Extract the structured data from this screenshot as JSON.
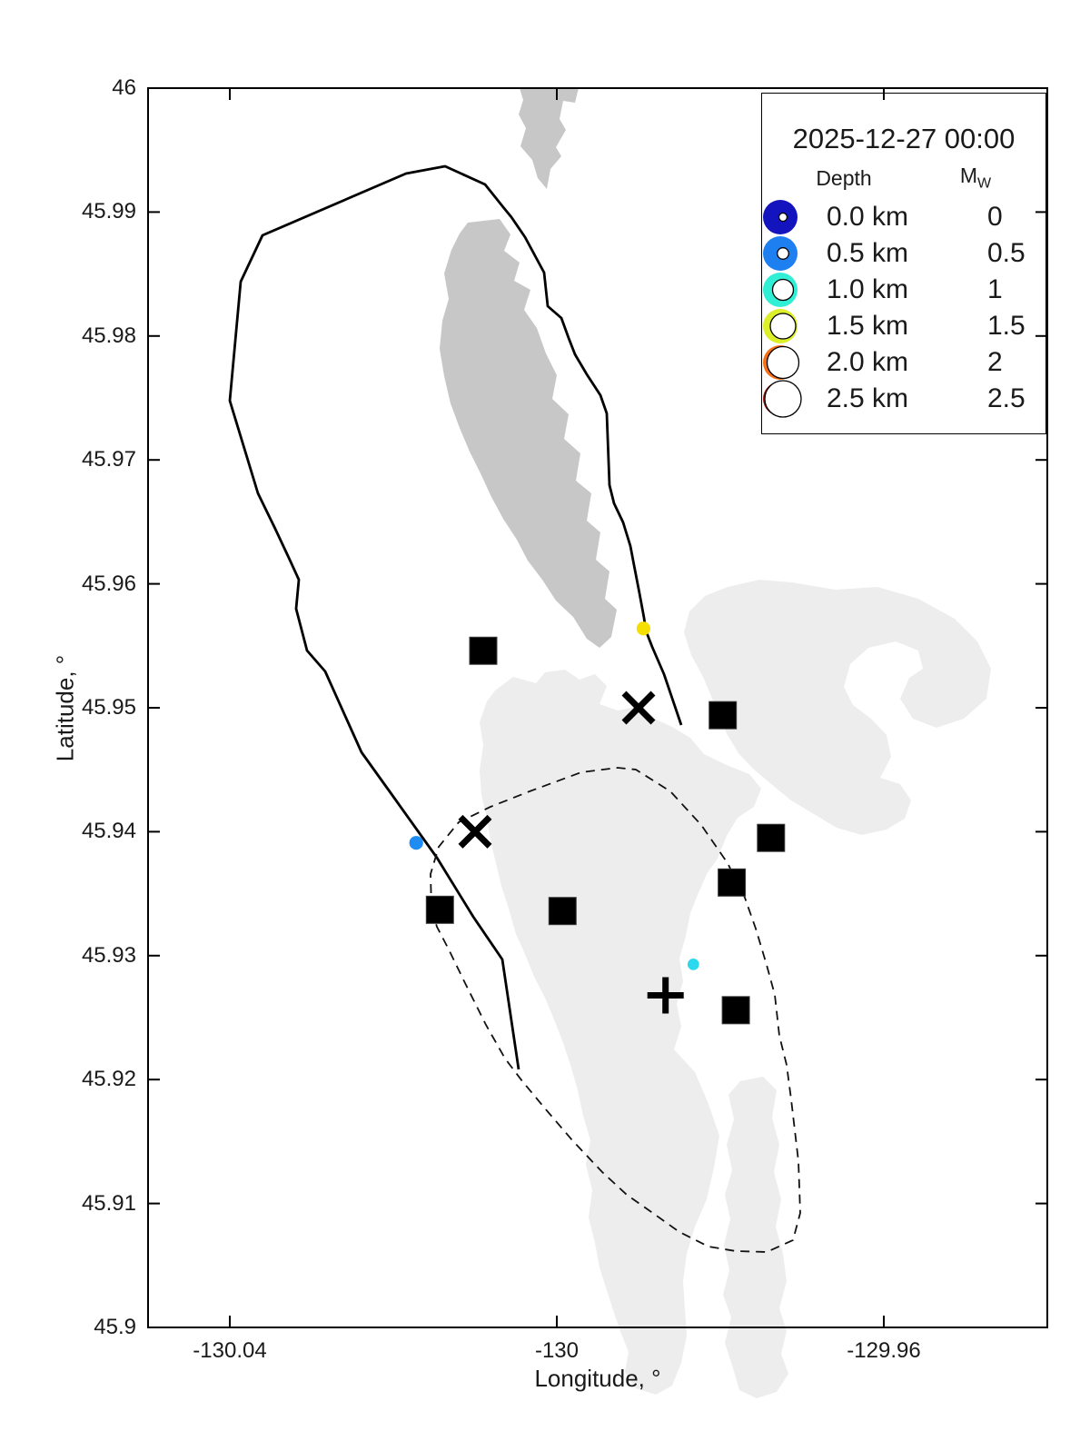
{
  "axes": {
    "xlabel": "Longitude, °",
    "ylabel": "Latitude, °",
    "tick_color": "#1a1a1a"
  },
  "legend": {
    "title": "2025-12-27 00:00",
    "depth_header": "Depth",
    "mw_title": "M",
    "mw_sub": "W",
    "depth": [
      {
        "label": "0.0 km",
        "color": "#1414BE"
      },
      {
        "label": "0.5 km",
        "color": "#1E80F0"
      },
      {
        "label": "1.0 km",
        "color": "#30EFD4"
      },
      {
        "label": "1.5 km",
        "color": "#DCEF28"
      },
      {
        "label": "2.0 km",
        "color": "#F97012"
      },
      {
        "label": "2.5 km",
        "color": "#A31111"
      }
    ],
    "mw": [
      {
        "label": "0",
        "r": 4.5
      },
      {
        "label": "0.5",
        "r": 6.3
      },
      {
        "label": "1",
        "r": 11.5
      },
      {
        "label": "1.5",
        "r": 14
      },
      {
        "label": "2",
        "r": 17.5
      },
      {
        "label": "2.5",
        "r": 20
      }
    ]
  },
  "map": {
    "colors": {
      "flow_dark": "#C7C7C7",
      "flow_light": "#EDEDED",
      "outline": "#000000",
      "background": "#FFFFFF"
    }
  },
  "chart_data": {
    "type": "scatter",
    "title": "2025-12-27 00:00",
    "xlabel": "Longitude, °",
    "ylabel": "Latitude, °",
    "xlim": [
      -130.05,
      -129.94
    ],
    "ylim": [
      45.9,
      46.0
    ],
    "x_ticks": [
      -130.04,
      -130.0,
      -129.96
    ],
    "x_tick_labels": [
      "-130.04",
      "-130",
      "-129.96"
    ],
    "y_ticks": [
      45.9,
      45.91,
      45.92,
      45.93,
      45.94,
      45.95,
      45.96,
      45.97,
      45.98,
      45.99,
      46.0
    ],
    "y_tick_labels": [
      "45.9",
      "45.91",
      "45.92",
      "45.93",
      "45.94",
      "45.95",
      "45.96",
      "45.97",
      "45.98",
      "45.99",
      "46"
    ],
    "grid": false,
    "legend_position": "top-right",
    "marker_styles": {
      "station_square_size": 30,
      "cross_half_size": 16,
      "cross_stroke": 7,
      "plus_half_size": 20,
      "plus_stroke": 7
    },
    "stations_squares": [
      {
        "lon": -130.009,
        "lat": 45.9546
      },
      {
        "lon": -129.9797,
        "lat": 45.9494
      },
      {
        "lon": -129.9738,
        "lat": 45.9395
      },
      {
        "lon": -129.9786,
        "lat": 45.9359
      },
      {
        "lon": -130.0143,
        "lat": 45.9337
      },
      {
        "lon": -129.9993,
        "lat": 45.9336
      },
      {
        "lon": -129.9781,
        "lat": 45.9256
      }
    ],
    "reference_crosses": [
      {
        "lon": -129.99,
        "lat": 45.95
      },
      {
        "lon": -130.01,
        "lat": 45.94
      }
    ],
    "plus_markers": [
      {
        "lon": -129.9867,
        "lat": 45.9268
      }
    ],
    "earthquakes": [
      {
        "lon": -129.9894,
        "lat": 45.9564,
        "color": "#F5DF00",
        "depth_km_approx": 1.6,
        "mw_approx": 0.5
      },
      {
        "lon": -130.0172,
        "lat": 45.9391,
        "color": "#1E8CF2",
        "depth_km_approx": 0.5,
        "mw_approx": 0.5
      },
      {
        "lon": -129.9833,
        "lat": 45.9293,
        "color": "#2CD8EE",
        "depth_km_approx": 0.9,
        "mw_approx": 0.3
      }
    ],
    "map_features": [
      "caldera-outline",
      "eruption-outline-dashed",
      "lava-flow-dark-patches",
      "lava-flow-light-patches"
    ]
  }
}
